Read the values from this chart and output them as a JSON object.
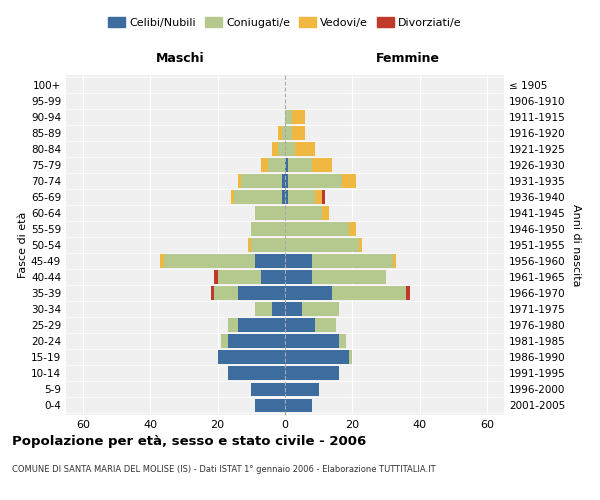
{
  "age_groups": [
    "0-4",
    "5-9",
    "10-14",
    "15-19",
    "20-24",
    "25-29",
    "30-34",
    "35-39",
    "40-44",
    "45-49",
    "50-54",
    "55-59",
    "60-64",
    "65-69",
    "70-74",
    "75-79",
    "80-84",
    "85-89",
    "90-94",
    "95-99",
    "100+"
  ],
  "birth_years": [
    "2001-2005",
    "1996-2000",
    "1991-1995",
    "1986-1990",
    "1981-1985",
    "1976-1980",
    "1971-1975",
    "1966-1970",
    "1961-1965",
    "1956-1960",
    "1951-1955",
    "1946-1950",
    "1941-1945",
    "1936-1940",
    "1931-1935",
    "1926-1930",
    "1921-1925",
    "1916-1920",
    "1911-1915",
    "1906-1910",
    "≤ 1905"
  ],
  "males": {
    "celibi": [
      9,
      10,
      17,
      20,
      17,
      14,
      4,
      14,
      7,
      9,
      0,
      0,
      0,
      1,
      1,
      0,
      0,
      0,
      0,
      0,
      0
    ],
    "coniugati": [
      0,
      0,
      0,
      0,
      2,
      3,
      5,
      7,
      13,
      27,
      10,
      10,
      9,
      14,
      12,
      5,
      2,
      1,
      0,
      0,
      0
    ],
    "vedovi": [
      0,
      0,
      0,
      0,
      0,
      0,
      0,
      0,
      0,
      1,
      1,
      0,
      0,
      1,
      1,
      2,
      2,
      1,
      0,
      0,
      0
    ],
    "divorziati": [
      0,
      0,
      0,
      0,
      0,
      0,
      0,
      1,
      1,
      0,
      0,
      0,
      0,
      0,
      0,
      0,
      0,
      0,
      0,
      0,
      0
    ]
  },
  "females": {
    "nubili": [
      8,
      10,
      16,
      19,
      16,
      9,
      5,
      14,
      8,
      8,
      0,
      0,
      0,
      1,
      1,
      1,
      0,
      0,
      0,
      0,
      0
    ],
    "coniugate": [
      0,
      0,
      0,
      1,
      2,
      6,
      11,
      22,
      22,
      24,
      22,
      19,
      11,
      8,
      16,
      7,
      3,
      2,
      2,
      0,
      0
    ],
    "vedove": [
      0,
      0,
      0,
      0,
      0,
      0,
      0,
      0,
      0,
      1,
      1,
      2,
      2,
      2,
      4,
      6,
      6,
      4,
      4,
      0,
      0
    ],
    "divorziate": [
      0,
      0,
      0,
      0,
      0,
      0,
      0,
      1,
      0,
      0,
      0,
      0,
      0,
      1,
      0,
      0,
      0,
      0,
      0,
      0,
      0
    ]
  },
  "colors": {
    "celibi": "#3d6d9e",
    "coniugati": "#b5c98e",
    "vedovi": "#f0b840",
    "divorziati": "#c0392b"
  },
  "xlim": 65,
  "title": "Popolazione per età, sesso e stato civile - 2006",
  "subtitle": "COMUNE DI SANTA MARIA DEL MOLISE (IS) - Dati ISTAT 1° gennaio 2006 - Elaborazione TUTTITALIA.IT",
  "ylabel_left": "Fasce di età",
  "ylabel_right": "Anni di nascita",
  "header_left": "Maschi",
  "header_right": "Femmine",
  "legend_labels": [
    "Celibi/Nubili",
    "Coniugati/e",
    "Vedovi/e",
    "Divorziati/e"
  ],
  "bg_color": "#f0f0f0",
  "bar_height": 0.85
}
